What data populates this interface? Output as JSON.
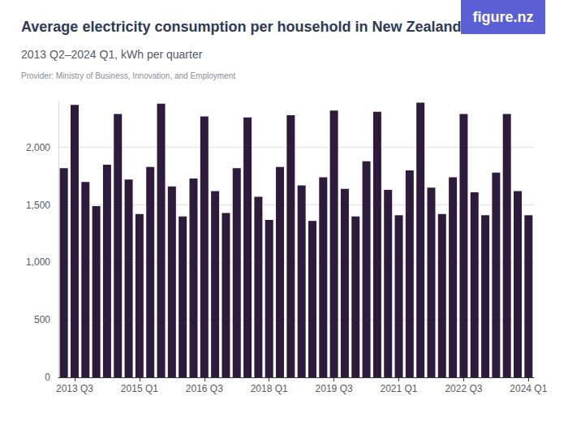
{
  "chart_data": {
    "type": "bar",
    "title": "Average electricity consumption per household in New Zealand",
    "subtitle": "2013 Q2–2024 Q1, kWh per quarter",
    "caption": "Provider: Ministry of Business, Innovation, and Employment",
    "logo": "figure.nz",
    "categories": [
      null,
      "2013 Q3",
      null,
      null,
      null,
      null,
      null,
      "2015 Q1",
      null,
      null,
      null,
      null,
      null,
      "2016 Q3",
      null,
      null,
      null,
      null,
      null,
      "2018 Q1",
      null,
      null,
      null,
      null,
      null,
      "2019 Q3",
      null,
      null,
      null,
      null,
      null,
      "2021 Q1",
      null,
      null,
      null,
      null,
      null,
      "2022 Q3",
      null,
      null,
      null,
      null,
      null,
      "2024 Q1"
    ],
    "values": [
      1820,
      2370,
      1700,
      1490,
      1850,
      2290,
      1720,
      1420,
      1830,
      2380,
      1660,
      1400,
      1730,
      2270,
      1620,
      1430,
      1820,
      2260,
      1570,
      1370,
      1830,
      2280,
      1670,
      1360,
      1740,
      2320,
      1640,
      1400,
      1880,
      2310,
      1630,
      1410,
      1800,
      2390,
      1650,
      1420,
      1740,
      2290,
      1610,
      1410,
      1780,
      2290,
      1620,
      1410
    ],
    "color": "#2e1a3c",
    "ylim": [
      0,
      2400
    ],
    "yticks": [
      0,
      500,
      {
        "value": 1000,
        "label": "1,000"
      },
      {
        "value": 1500,
        "label": "1,500"
      },
      {
        "value": 2000,
        "label": "2,000"
      }
    ],
    "grid": true
  }
}
